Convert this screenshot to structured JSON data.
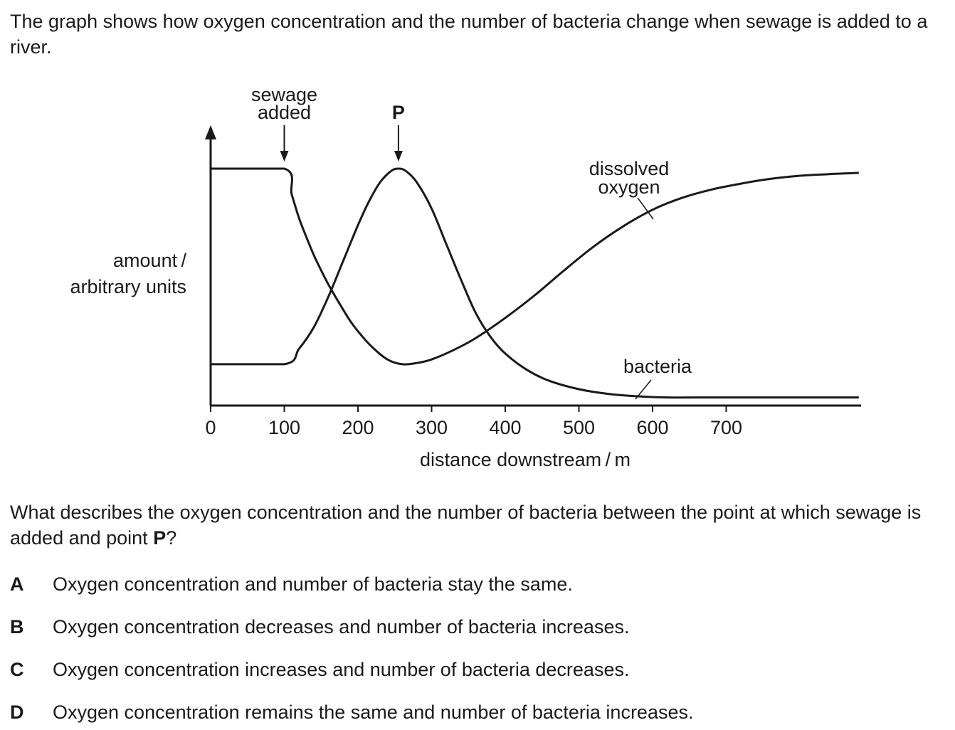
{
  "intro_text": "The graph shows how oxygen concentration and the number of bacteria change when sewage is added to a river.",
  "question": {
    "before": "What describes the oxygen concentration and the number of bacteria between the point at which sewage is added and point ",
    "bold": "P",
    "after": "?"
  },
  "options": [
    {
      "letter": "A",
      "text": "Oxygen concentration and number of bacteria stay the same."
    },
    {
      "letter": "B",
      "text": "Oxygen concentration decreases and number of bacteria increases."
    },
    {
      "letter": "C",
      "text": "Oxygen concentration increases and number of bacteria decreases."
    },
    {
      "letter": "D",
      "text": "Oxygen concentration remains the same and number of bacteria increases."
    }
  ],
  "chart_data": {
    "type": "line",
    "title": "",
    "xlabel": "distance downstream / m",
    "ylabel_lines": [
      "amount /",
      "arbitrary units"
    ],
    "xlim": [
      0,
      880
    ],
    "ylim": [
      0,
      100
    ],
    "xticks": [
      0,
      100,
      200,
      300,
      400,
      500,
      600,
      700
    ],
    "grid": false,
    "annotations": [
      {
        "label_lines": [
          "sewage",
          "added"
        ],
        "x": 100
      },
      {
        "label_lines": [
          "P"
        ],
        "x": 255,
        "bold": true
      }
    ],
    "series": [
      {
        "name": "dissolved oxygen",
        "label_lines": [
          "dissolved",
          "oxygen"
        ],
        "x": [
          0,
          100,
          110,
          120,
          130,
          140,
          150,
          160,
          175,
          190,
          205,
          220,
          240,
          260,
          280,
          300,
          330,
          360,
          400,
          440,
          480,
          520,
          560,
          600,
          640,
          680,
          720,
          760,
          800,
          840,
          880
        ],
        "y": [
          98.8,
          98.8,
          88,
          78,
          70,
          62.5,
          56,
          50,
          42,
          34.5,
          28.5,
          23.5,
          18.5,
          16.5,
          17,
          18.5,
          22.5,
          27.5,
          36,
          45.5,
          56,
          66,
          74.5,
          81.5,
          86.5,
          90,
          92.5,
          94.5,
          95.8,
          96.5,
          97
        ]
      },
      {
        "name": "bacteria",
        "label_lines": [
          "bacteria"
        ],
        "x": [
          0,
          100,
          120,
          140,
          160,
          180,
          200,
          215,
          230,
          245,
          255,
          265,
          280,
          300,
          320,
          340,
          360,
          380,
          400,
          430,
          460,
          500,
          540,
          580,
          620,
          680,
          750,
          820,
          880
        ],
        "y": [
          16.5,
          16.5,
          23,
          32,
          45,
          60,
          75,
          85,
          93,
          97.8,
          98.8,
          97.8,
          93,
          82,
          67,
          52,
          38,
          28,
          21,
          14,
          9.5,
          6,
          4,
          3,
          2.5,
          2.5,
          2.5,
          2.5,
          2.5
        ]
      }
    ]
  }
}
